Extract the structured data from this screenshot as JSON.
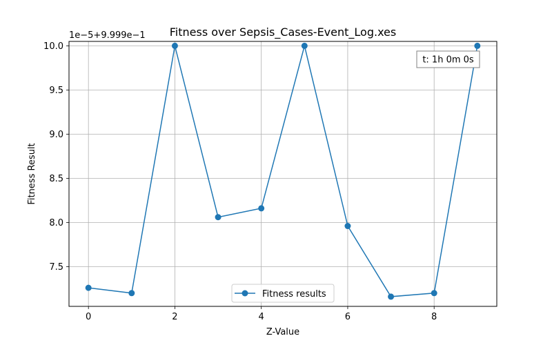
{
  "chart_data": {
    "type": "line",
    "title": "Fitness over Sepsis_Cases-Event_Log.xes",
    "xlabel": "Z-Value",
    "ylabel": "Fitness Result",
    "y_offset_label": "1e−5+9.999e−1",
    "x_ticks": [
      0,
      2,
      4,
      6,
      8
    ],
    "x_tick_labels": [
      "0",
      "2",
      "4",
      "6",
      "8"
    ],
    "y_ticks": [
      7.5,
      8.0,
      8.5,
      9.0,
      9.5,
      10.0
    ],
    "y_tick_labels": [
      "7.5",
      "8.0",
      "8.5",
      "9.0",
      "9.5",
      "10.0"
    ],
    "xlim": [
      -0.45,
      9.45
    ],
    "ylim": [
      7.05,
      10.05
    ],
    "grid": true,
    "legend_position": "lower-center",
    "annotation": "t: 1h 0m 0s",
    "series": [
      {
        "name": "Fitness results",
        "color": "#1f77b4",
        "marker": "circle",
        "x": [
          0,
          1,
          2,
          3,
          4,
          5,
          6,
          7,
          8,
          9
        ],
        "y": [
          7.26,
          7.2,
          10.0,
          8.06,
          8.16,
          10.0,
          7.96,
          7.16,
          7.2,
          10.0
        ]
      }
    ]
  }
}
